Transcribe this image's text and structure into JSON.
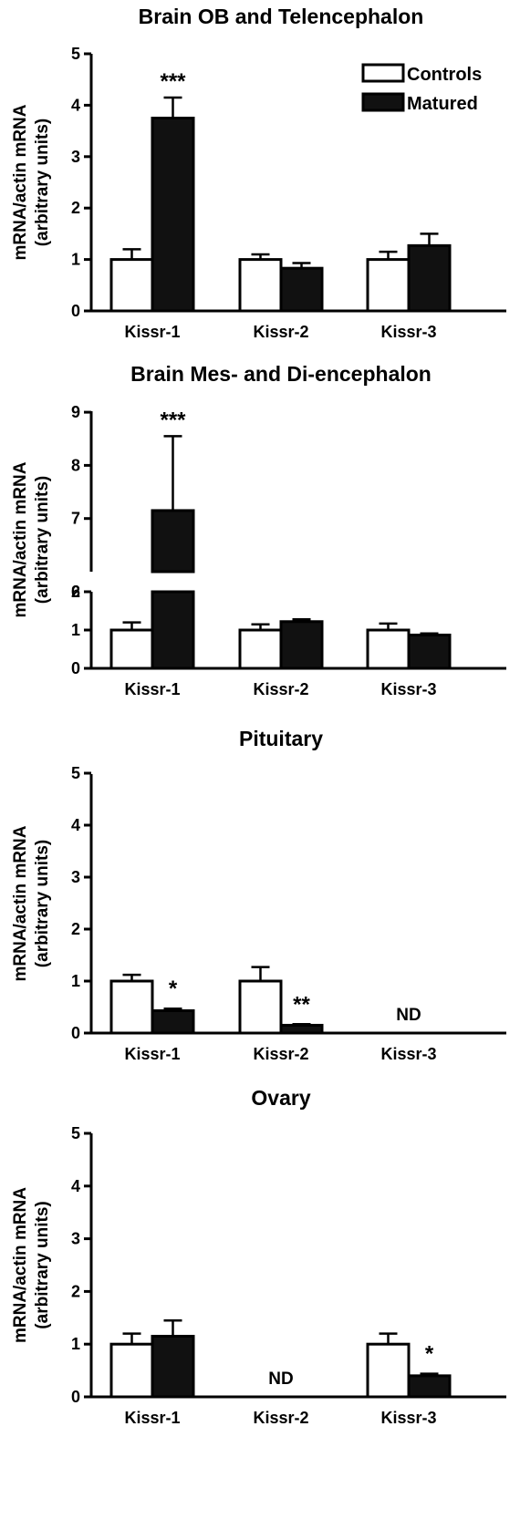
{
  "legend": {
    "controls_label": "Controls",
    "matured_label": "Matured",
    "controls_color": "#ffffff",
    "matured_color": "#111111"
  },
  "chart_data": [
    {
      "type": "bar",
      "title": "Brain OB and Telencephalon",
      "ylabel": [
        "mRNA/actin mRNA",
        "(arbitrary units)"
      ],
      "ylim": [
        0,
        5
      ],
      "yticks": [
        "0",
        "1",
        "2",
        "3",
        "4",
        "5"
      ],
      "categories": [
        "Kissr-1",
        "Kissr-2",
        "Kissr-3"
      ],
      "series": [
        {
          "name": "Controls",
          "values": [
            1.0,
            1.0,
            1.0
          ],
          "errors": [
            0.2,
            0.1,
            0.15
          ]
        },
        {
          "name": "Matured",
          "values": [
            3.75,
            0.83,
            1.27
          ],
          "errors": [
            0.4,
            0.1,
            0.23
          ]
        }
      ],
      "significance": [
        "***",
        "",
        ""
      ],
      "not_detected": [
        "",
        "",
        ""
      ],
      "legend_position": "top-right"
    },
    {
      "type": "bar",
      "title": "Brain Mes- and Di-encephalon",
      "ylabel": [
        "mRNA/actin mRNA",
        "(arbitrary units)"
      ],
      "ylim": [
        0,
        9
      ],
      "axis_break": [
        2,
        6
      ],
      "yticks": [
        "0",
        "1",
        "2",
        "6",
        "7",
        "8",
        "9"
      ],
      "categories": [
        "Kissr-1",
        "Kissr-2",
        "Kissr-3"
      ],
      "series": [
        {
          "name": "Controls",
          "values": [
            1.0,
            1.0,
            1.0
          ],
          "errors": [
            0.2,
            0.15,
            0.17
          ]
        },
        {
          "name": "Matured",
          "values": [
            7.15,
            1.22,
            0.87
          ],
          "errors": [
            1.4,
            0.06,
            0.04
          ]
        }
      ],
      "significance": [
        "***",
        "",
        ""
      ],
      "not_detected": [
        "",
        "",
        ""
      ]
    },
    {
      "type": "bar",
      "title": "Pituitary",
      "ylabel": [
        "mRNA/actin mRNA",
        "(arbitrary units)"
      ],
      "ylim": [
        0,
        5
      ],
      "yticks": [
        "0",
        "1",
        "2",
        "3",
        "4",
        "5"
      ],
      "categories": [
        "Kissr-1",
        "Kissr-2",
        "Kissr-3"
      ],
      "series": [
        {
          "name": "Controls",
          "values": [
            1.0,
            1.0,
            0
          ],
          "errors": [
            0.12,
            0.27,
            0
          ]
        },
        {
          "name": "Matured",
          "values": [
            0.43,
            0.15,
            0
          ],
          "errors": [
            0.04,
            0.02,
            0
          ]
        }
      ],
      "significance": [
        "*",
        "**",
        ""
      ],
      "not_detected": [
        "",
        "",
        "ND"
      ]
    },
    {
      "type": "bar",
      "title": "Ovary",
      "ylabel": [
        "mRNA/actin mRNA",
        "(arbitrary units)"
      ],
      "ylim": [
        0,
        5
      ],
      "yticks": [
        "0",
        "1",
        "2",
        "3",
        "4",
        "5"
      ],
      "categories": [
        "Kissr-1",
        "Kissr-2",
        "Kissr-3"
      ],
      "series": [
        {
          "name": "Controls",
          "values": [
            1.0,
            0,
            1.0
          ],
          "errors": [
            0.2,
            0,
            0.2
          ]
        },
        {
          "name": "Matured",
          "values": [
            1.15,
            0,
            0.4
          ],
          "errors": [
            0.3,
            0,
            0.04
          ]
        }
      ],
      "significance": [
        "",
        "",
        "*"
      ],
      "not_detected": [
        "",
        "ND",
        ""
      ]
    }
  ]
}
